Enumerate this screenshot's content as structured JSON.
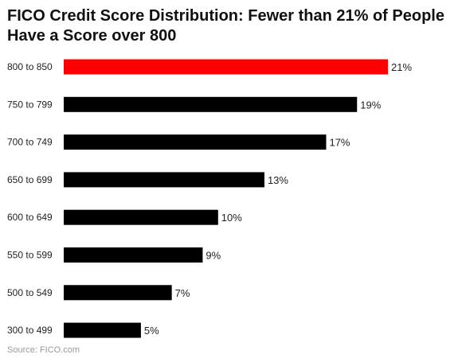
{
  "colors": {
    "highlight": "#ff0000",
    "bar": "#000000"
  },
  "chart_data": {
    "type": "bar",
    "orientation": "horizontal",
    "title": "FICO Credit Score Distribution: Fewer than 21% of People Have a Score over 800",
    "categories": [
      "800 to 850",
      "750 to 799",
      "700 to 749",
      "650 to 699",
      "600 to 649",
      "550 to 599",
      "500 to 549",
      "300 to 499"
    ],
    "values": [
      21,
      19,
      17,
      13,
      10,
      9,
      7,
      5
    ],
    "value_labels": [
      "21%",
      "19%",
      "17%",
      "13%",
      "10%",
      "9%",
      "7%",
      "5%"
    ],
    "highlight_index": 0,
    "xlim": [
      0,
      21
    ],
    "grid": false,
    "legend": "none",
    "source": "Source: FICO.com"
  }
}
